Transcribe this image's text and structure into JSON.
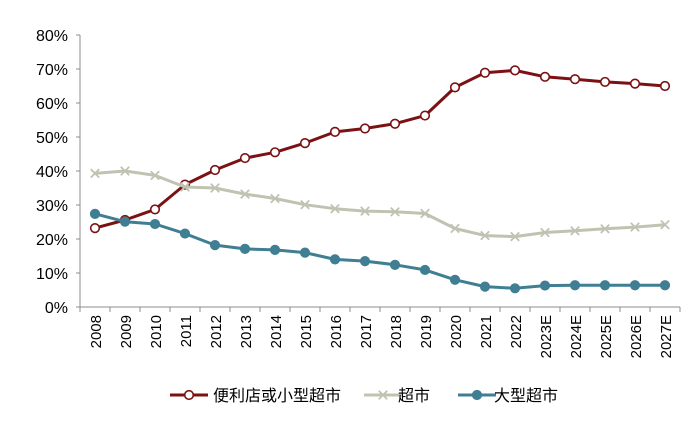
{
  "chart_data": {
    "type": "line",
    "title": "",
    "xlabel": "",
    "ylabel": "",
    "ylim": [
      0,
      80
    ],
    "y_ticks": [
      0,
      10,
      20,
      30,
      40,
      50,
      60,
      70,
      80
    ],
    "y_tick_labels": [
      "0%",
      "10%",
      "20%",
      "30%",
      "40%",
      "50%",
      "60%",
      "70%",
      "80%"
    ],
    "categories": [
      "2008",
      "2009",
      "2010",
      "2011",
      "2012",
      "2013",
      "2014",
      "2015",
      "2016",
      "2017",
      "2018",
      "2019",
      "2020",
      "2021",
      "2022",
      "2023E",
      "2024E",
      "2025E",
      "2026E",
      "2027E"
    ],
    "legend_position": "bottom",
    "grid": false,
    "series": [
      {
        "name": "便利店或小型超市",
        "color": "#7b1113",
        "marker": "open-circle",
        "values": [
          23.2,
          25.6,
          28.7,
          36.0,
          40.3,
          43.8,
          45.5,
          48.2,
          51.5,
          52.5,
          53.9,
          56.3,
          64.6,
          68.9,
          69.6,
          67.7,
          67.0,
          66.2,
          65.7,
          65.0
        ]
      },
      {
        "name": "超市",
        "color": "#c0c3b2",
        "marker": "x",
        "values": [
          39.3,
          40.0,
          38.7,
          35.3,
          35.0,
          33.2,
          31.9,
          30.1,
          28.9,
          28.2,
          28.0,
          27.5,
          23.1,
          21.0,
          20.7,
          21.9,
          22.4,
          23.0,
          23.5,
          24.2
        ]
      },
      {
        "name": "大型超市",
        "color": "#3f7e93",
        "marker": "filled-circle",
        "values": [
          27.4,
          25.1,
          24.4,
          21.6,
          18.2,
          17.1,
          16.8,
          16.0,
          14.0,
          13.5,
          12.4,
          10.9,
          8.0,
          6.0,
          5.5,
          6.3,
          6.4,
          6.4,
          6.4,
          6.4
        ]
      }
    ]
  }
}
